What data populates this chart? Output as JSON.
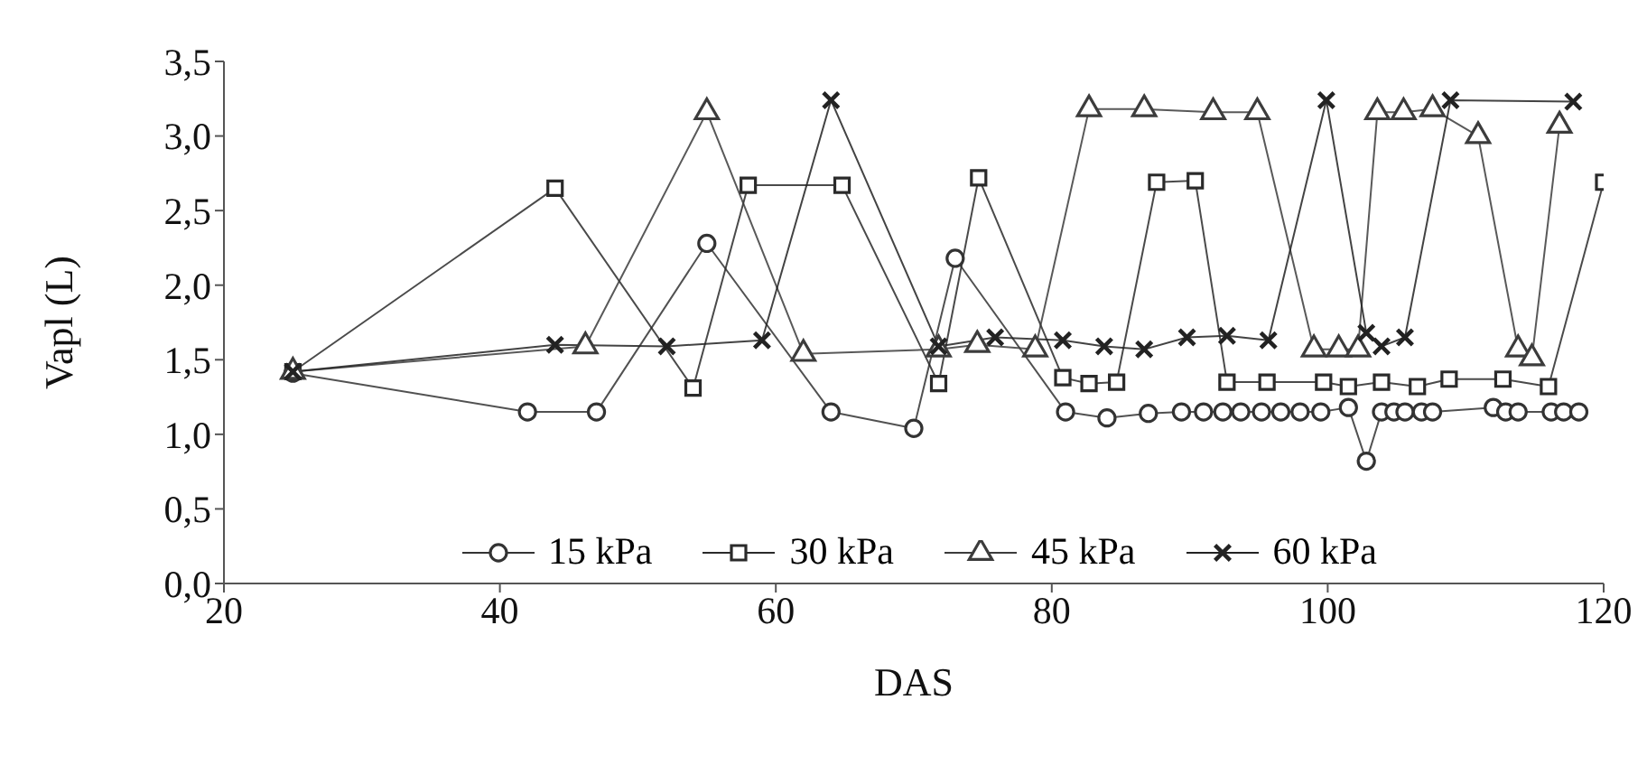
{
  "chart_data": {
    "type": "line",
    "xlabel": "DAS",
    "ylabel": "Vapl (L)",
    "xlim": [
      20,
      120
    ],
    "xticks": [
      20,
      40,
      60,
      80,
      100,
      120
    ],
    "ylim": [
      0,
      3.5
    ],
    "yticks": [
      {
        "value": 0,
        "label": "0,0"
      },
      {
        "value": 0.5,
        "label": "0,5"
      },
      {
        "value": 1,
        "label": "1,0"
      },
      {
        "value": 1.5,
        "label": "1,5"
      },
      {
        "value": 2,
        "label": "2,0"
      },
      {
        "value": 2.5,
        "label": "2,5"
      },
      {
        "value": 3,
        "label": "3,0"
      },
      {
        "value": 3.5,
        "label": "3,5"
      }
    ],
    "grid": false,
    "legend": "bottom",
    "line_style": "solid",
    "series": [
      {
        "name": "15 kPa",
        "color": "#333333",
        "marker": "circle",
        "x": [
          25,
          42,
          47,
          55,
          64,
          70,
          73,
          81,
          84,
          87,
          89.4,
          91,
          92.4,
          93.7,
          95.2,
          96.6,
          98,
          99.5,
          101.5,
          102.8,
          103.9,
          104.8,
          105.6,
          106.8,
          107.6,
          112,
          112.9,
          113.8,
          116.2,
          117.1,
          118.2
        ],
        "values": [
          1.41,
          1.15,
          1.15,
          2.28,
          1.15,
          1.04,
          2.18,
          1.15,
          1.11,
          1.14,
          1.15,
          1.15,
          1.15,
          1.15,
          1.15,
          1.15,
          1.15,
          1.15,
          1.18,
          0.82,
          1.15,
          1.15,
          1.15,
          1.15,
          1.15,
          1.18,
          1.15,
          1.15,
          1.15,
          1.15,
          1.15
        ]
      },
      {
        "name": "30 kPa",
        "color": "#2a2a2a",
        "marker": "square",
        "x": [
          25,
          44,
          54,
          58,
          64.8,
          71.8,
          74.7,
          80.8,
          82.7,
          84.7,
          87.6,
          90.4,
          92.7,
          95.6,
          99.7,
          101.5,
          103.9,
          106.5,
          108.8,
          112.7,
          116,
          120
        ],
        "values": [
          1.42,
          2.65,
          1.31,
          2.67,
          2.67,
          1.34,
          2.72,
          1.38,
          1.34,
          1.35,
          2.69,
          2.7,
          1.35,
          1.35,
          1.35,
          1.32,
          1.35,
          1.32,
          1.37,
          1.37,
          1.32,
          2.69
        ]
      },
      {
        "name": "45 kPa",
        "color": "#3c3c3c",
        "marker": "triangle",
        "x": [
          25,
          46.2,
          55,
          62,
          71.8,
          74.6,
          78.8,
          82.7,
          86.7,
          91.7,
          94.9,
          99,
          100.8,
          102.2,
          103.6,
          105.5,
          107.6,
          110.9,
          113.8,
          114.8,
          116.8
        ],
        "values": [
          1.42,
          1.59,
          3.16,
          1.54,
          1.57,
          1.6,
          1.57,
          3.18,
          3.18,
          3.16,
          3.16,
          1.57,
          1.57,
          1.57,
          3.16,
          3.16,
          3.18,
          3.0,
          1.57,
          1.51,
          3.07
        ]
      },
      {
        "name": "60 kPa",
        "color": "#222222",
        "marker": "cross",
        "x": [
          25,
          44,
          52.1,
          59,
          64,
          71.8,
          75.9,
          80.8,
          83.8,
          86.7,
          89.8,
          92.7,
          95.7,
          99.9,
          102.8,
          103.9,
          105.6,
          108.9,
          117.8
        ],
        "values": [
          1.42,
          1.6,
          1.59,
          1.63,
          3.24,
          1.59,
          1.65,
          1.63,
          1.59,
          1.57,
          1.65,
          1.66,
          1.63,
          3.24,
          1.68,
          1.59,
          1.65,
          3.24,
          3.23
        ]
      }
    ]
  }
}
